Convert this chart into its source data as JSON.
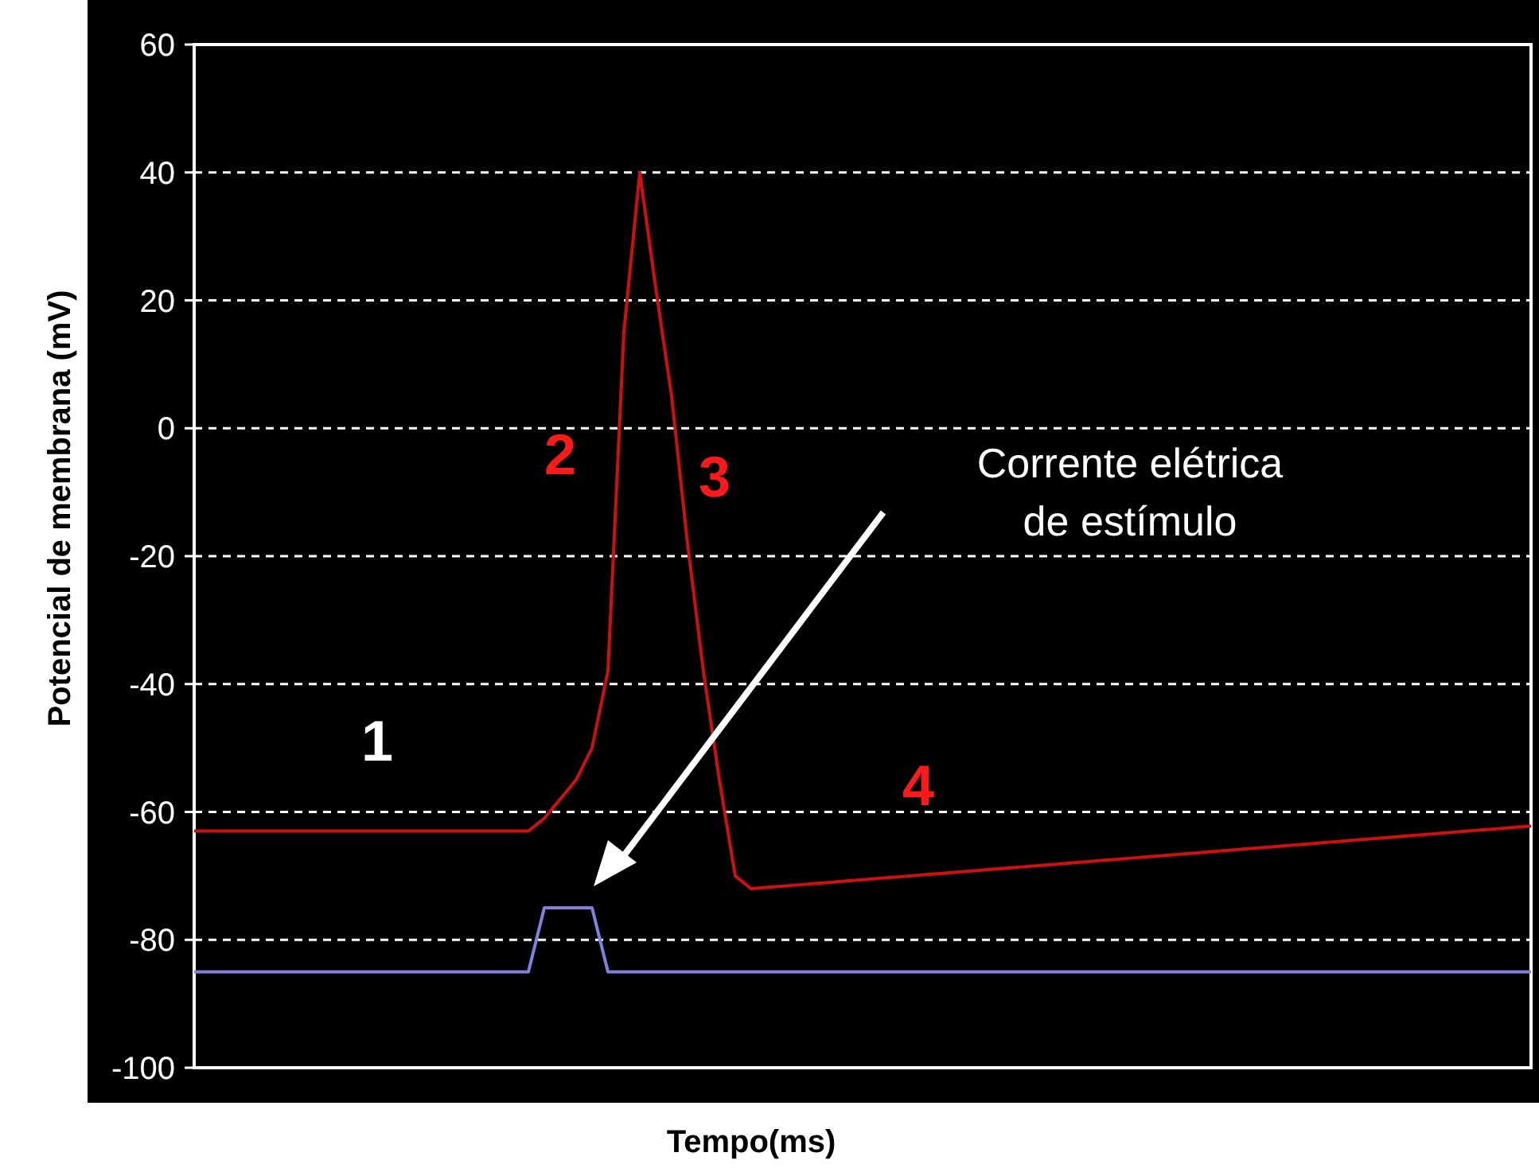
{
  "chart_data": {
    "type": "line",
    "xlabel": "Tempo(ms)",
    "ylabel": "Potencial de membrana (mV)",
    "categories": [
      null,
      null,
      null,
      null,
      null,
      null,
      null,
      null,
      null,
      null,
      null,
      null,
      null,
      null,
      null,
      null,
      null,
      null,
      null,
      null,
      null,
      null,
      null,
      null,
      null,
      null,
      null,
      null,
      null,
      null,
      null,
      null,
      null,
      null,
      null,
      null,
      null,
      null,
      null,
      null,
      null,
      null,
      null,
      null,
      null,
      null,
      null,
      null,
      null,
      null,
      null,
      null,
      null,
      null,
      null,
      null,
      null,
      null,
      null,
      null,
      null,
      null,
      null,
      null,
      null,
      null,
      null,
      null,
      null,
      null,
      null,
      null,
      null,
      null,
      null,
      null,
      null,
      null,
      null,
      null,
      null,
      null,
      null,
      null,
      null
    ],
    "series": [
      {
        "color": "#d01010",
        "values": [
          -63,
          -63,
          -63,
          -63,
          -63,
          -63,
          -63,
          -63,
          -63,
          -63,
          -63,
          -63,
          -63,
          -63,
          -63,
          -63,
          -63,
          -63,
          -63,
          -63,
          -63,
          -63,
          -61,
          -58,
          -55,
          -50,
          -38,
          15,
          40,
          22,
          5,
          -18,
          -38,
          -55,
          -70,
          -72,
          -71.8,
          -71.6,
          -71.4,
          -71.2,
          -71,
          -70.8,
          -70.6,
          -70.4,
          -70.2,
          -70,
          -69.8,
          -69.6,
          -69.4,
          -69.2,
          -69,
          -68.8,
          -68.6,
          -68.4,
          -68.2,
          -68,
          -67.8,
          -67.6,
          -67.4,
          -67.2,
          -67,
          -66.8,
          -66.6,
          -66.4,
          -66.2,
          -66,
          -65.8,
          -65.6,
          -65.4,
          -65.2,
          -65,
          -64.8,
          -64.6,
          -64.4,
          -64.2,
          -64,
          -63.8,
          -63.6,
          -63.4,
          -63.2,
          -63,
          -62.8,
          -62.6,
          -62.4,
          -62.2
        ]
      },
      {
        "color": "#8080e0",
        "values": [
          -85,
          -85,
          -85,
          -85,
          -85,
          -85,
          -85,
          -85,
          -85,
          -85,
          -85,
          -85,
          -85,
          -85,
          -85,
          -85,
          -85,
          -85,
          -85,
          -85,
          -85,
          -85,
          -75,
          -75,
          -75,
          -75,
          -85,
          -85,
          -85,
          -85,
          -85,
          -85,
          -85,
          -85,
          -85,
          -85,
          -85,
          -85,
          -85,
          -85,
          -85,
          -85,
          -85,
          -85,
          -85,
          -85,
          -85,
          -85,
          -85,
          -85,
          -85,
          -85,
          -85,
          -85,
          -85,
          -85,
          -85,
          -85,
          -85,
          -85,
          -85,
          -85,
          -85,
          -85,
          -85,
          -85,
          -85,
          -85,
          -85,
          -85,
          -85,
          -85,
          -85,
          -85,
          -85,
          -85,
          -85,
          -85,
          -85,
          -85,
          -85,
          -85,
          -85,
          -85,
          -85
        ]
      }
    ],
    "ylim": [
      -100,
      60
    ],
    "yticks": [
      -100,
      -80,
      -60,
      -40,
      -20,
      0,
      20,
      40,
      60
    ],
    "grid": "y",
    "tick_labels": "y",
    "line_style": "solid",
    "annotations": [
      "1",
      "2",
      "3",
      "4",
      "Corrente elétrica de estímulo"
    ]
  }
}
